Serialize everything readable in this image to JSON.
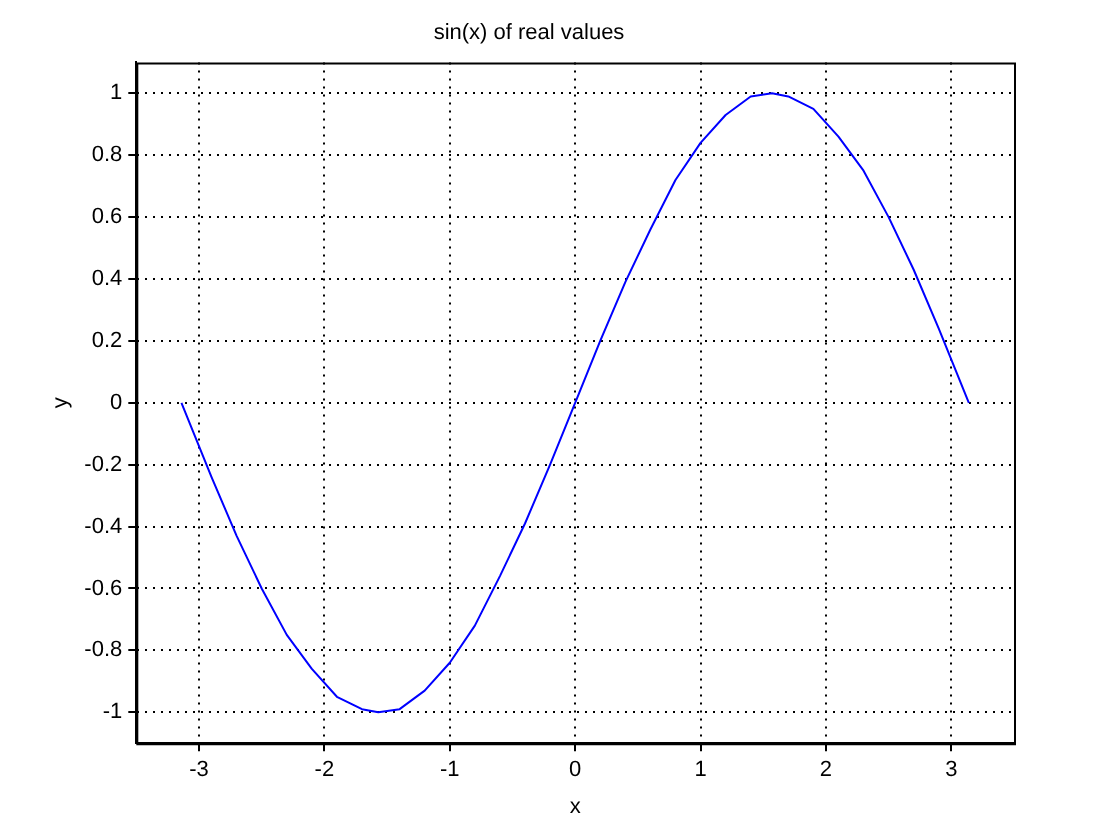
{
  "chart_data": {
    "type": "line",
    "title": "sin(x) of real values",
    "xlabel": "x",
    "ylabel": "y",
    "x": [
      -3.14,
      -2.9,
      -2.7,
      -2.5,
      -2.3,
      -2.1,
      -1.9,
      -1.7,
      -1.57,
      -1.4,
      -1.2,
      -1.0,
      -0.8,
      -0.6,
      -0.4,
      -0.2,
      0,
      0.2,
      0.4,
      0.6,
      0.8,
      1.0,
      1.2,
      1.4,
      1.57,
      1.7,
      1.9,
      2.1,
      2.3,
      2.5,
      2.7,
      2.9,
      3.14
    ],
    "series": [
      {
        "color": "#0000ff",
        "values": [
          0,
          -0.24,
          -0.43,
          -0.6,
          -0.75,
          -0.86,
          -0.95,
          -0.99,
          -1,
          -0.99,
          -0.93,
          -0.84,
          -0.72,
          -0.56,
          -0.39,
          -0.2,
          0,
          0.2,
          0.39,
          0.56,
          0.72,
          0.84,
          0.93,
          0.99,
          1,
          0.99,
          0.95,
          0.86,
          0.75,
          0.6,
          0.43,
          0.24,
          0
        ]
      }
    ],
    "xlim": [
      -3.5,
      3.5
    ],
    "xticks": [
      -3,
      -2,
      -1,
      0,
      1,
      2,
      3
    ],
    "ylim": [
      -1.1,
      1.1
    ],
    "yticks": [
      -1,
      -0.8,
      -0.6,
      -0.4,
      -0.2,
      0,
      0.2,
      0.4,
      0.6,
      0.8,
      1
    ],
    "grid": true,
    "legend": false,
    "marker": "none",
    "line_style": "solid"
  }
}
